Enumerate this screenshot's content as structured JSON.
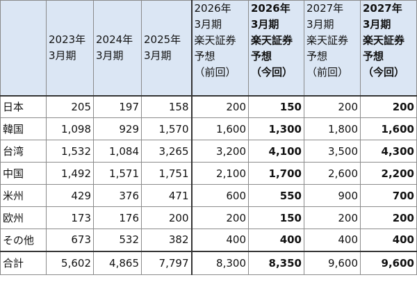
{
  "headers": [
    "",
    "2023年\n3月期",
    "2024年\n3月期",
    "2025年\n3月期",
    "2026年\n3月期\n楽天証券\n予想\n（前回）",
    "2026年\n3月期\n楽天証券\n予想\n（今回）",
    "2027年\n3月期\n楽天証券\n予想\n（前回）",
    "2027年\n3月期\n楽天証券\n予想\n（今回）"
  ],
  "rows": [
    {
      "label": "日本",
      "values": [
        "205",
        "197",
        "158",
        "200",
        "150",
        "200",
        "200"
      ]
    },
    {
      "label": "韓国",
      "values": [
        "1,098",
        "929",
        "1,570",
        "1,600",
        "1,300",
        "1,800",
        "1,600"
      ]
    },
    {
      "label": "台湾",
      "values": [
        "1,532",
        "1,084",
        "3,265",
        "3,200",
        "4,100",
        "3,500",
        "4,300"
      ]
    },
    {
      "label": "中国",
      "values": [
        "1,492",
        "1,571",
        "1,751",
        "2,100",
        "1,700",
        "2,600",
        "2,200"
      ]
    },
    {
      "label": "米州",
      "values": [
        "429",
        "376",
        "471",
        "600",
        "550",
        "900",
        "700"
      ]
    },
    {
      "label": "欧州",
      "values": [
        "173",
        "176",
        "200",
        "200",
        "150",
        "200",
        "200"
      ]
    },
    {
      "label": "その他",
      "values": [
        "673",
        "532",
        "382",
        "400",
        "400",
        "400",
        "400"
      ]
    }
  ],
  "total": {
    "label": "合計",
    "values": [
      "5,602",
      "4,865",
      "7,797",
      "8,300",
      "8,350",
      "9,600",
      "9,600"
    ]
  },
  "colors": {
    "header_bg": "#dbe6f4",
    "border": "#8a8a8a"
  }
}
